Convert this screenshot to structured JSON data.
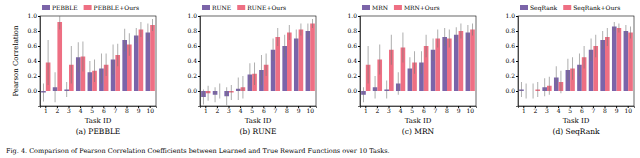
{
  "chart_data": [
    {
      "type": "bar",
      "title": "(a) PEBBLE",
      "x_label": "Task ID",
      "y_label": "Pearson Correlation",
      "categories": [
        "1",
        "2",
        "3",
        "4",
        "5",
        "6",
        "7",
        "8",
        "9",
        "10"
      ],
      "series": [
        {
          "name": "PEBBLE",
          "color": "#7b64a9",
          "values": [
            -0.02,
            0.05,
            0.02,
            0.45,
            0.25,
            0.3,
            0.42,
            0.68,
            0.74,
            0.78
          ],
          "errors": [
            0.12,
            0.2,
            0.1,
            0.2,
            0.15,
            0.2,
            0.2,
            0.15,
            0.1,
            0.12
          ]
        },
        {
          "name": "PEBBLE+Ours",
          "color": "#ee6f83",
          "values": [
            0.38,
            0.92,
            0.35,
            0.46,
            0.27,
            0.35,
            0.48,
            0.62,
            0.82,
            0.88
          ],
          "errors": [
            0.3,
            0.1,
            0.25,
            0.2,
            0.15,
            0.15,
            0.15,
            0.15,
            0.1,
            0.08
          ]
        }
      ],
      "ylim": [
        -0.2,
        1.0
      ],
      "yticks": [
        {
          "value": 0,
          "label": "0.0"
        },
        {
          "value": 0.2,
          "label": "0.2"
        },
        {
          "value": 0.4,
          "label": "0.4"
        },
        {
          "value": 0.6,
          "label": "0.6"
        },
        {
          "value": 0.8,
          "label": "0.8"
        },
        {
          "value": 1,
          "label": "1.0"
        }
      ],
      "legend": "upper left",
      "grid": false
    },
    {
      "type": "bar",
      "title": "(b) RUNE",
      "x_label": "Task ID",
      "categories": [
        "1",
        "2",
        "3",
        "4",
        "5",
        "6",
        "7",
        "8",
        "9",
        "10"
      ],
      "series": [
        {
          "name": "RUNE",
          "color": "#7b64a9",
          "values": [
            -0.08,
            -0.05,
            -0.07,
            0.03,
            0.22,
            0.28,
            0.55,
            0.6,
            0.7,
            0.8
          ],
          "errors": [
            0.1,
            0.1,
            0.12,
            0.15,
            0.15,
            0.2,
            0.15,
            0.15,
            0.12,
            0.1
          ]
        },
        {
          "name": "RUNE+Ours",
          "color": "#ee6f83",
          "values": [
            -0.03,
            0.0,
            -0.02,
            0.05,
            0.23,
            0.35,
            0.72,
            0.78,
            0.82,
            0.9
          ],
          "errors": [
            0.1,
            0.1,
            0.1,
            0.15,
            0.15,
            0.15,
            0.12,
            0.1,
            0.08,
            0.06
          ]
        }
      ],
      "ylim": [
        -0.2,
        1.0
      ],
      "yticks": [
        {
          "value": 0,
          "label": "0.0"
        },
        {
          "value": 0.2,
          "label": "0.2"
        },
        {
          "value": 0.4,
          "label": "0.4"
        },
        {
          "value": 0.6,
          "label": "0.6"
        },
        {
          "value": 0.8,
          "label": "0.8"
        },
        {
          "value": 1,
          "label": "1.0"
        }
      ],
      "legend": "upper left",
      "grid": false
    },
    {
      "type": "bar",
      "title": "(c) MRN",
      "x_label": "Task ID",
      "categories": [
        "1",
        "2",
        "3",
        "4",
        "5",
        "6",
        "7",
        "8",
        "9",
        "10"
      ],
      "series": [
        {
          "name": "MRN",
          "color": "#7b64a9",
          "values": [
            -0.05,
            0.05,
            0.02,
            0.1,
            0.3,
            0.38,
            0.55,
            0.72,
            0.75,
            0.78
          ],
          "errors": [
            0.1,
            0.15,
            0.12,
            0.15,
            0.15,
            0.15,
            0.15,
            0.12,
            0.1,
            0.1
          ]
        },
        {
          "name": "MRN+Ours",
          "color": "#ee6f83",
          "values": [
            0.35,
            0.42,
            0.55,
            0.58,
            0.38,
            0.6,
            0.7,
            0.7,
            0.8,
            0.82
          ],
          "errors": [
            0.25,
            0.2,
            0.2,
            0.2,
            0.15,
            0.15,
            0.12,
            0.12,
            0.1,
            0.08
          ]
        }
      ],
      "ylim": [
        -0.2,
        1.0
      ],
      "yticks": [
        {
          "value": 0,
          "label": "0.0"
        },
        {
          "value": 0.2,
          "label": "0.2"
        },
        {
          "value": 0.4,
          "label": "0.4"
        },
        {
          "value": 0.6,
          "label": "0.6"
        },
        {
          "value": 0.8,
          "label": "0.8"
        },
        {
          "value": 1,
          "label": "1.0"
        }
      ],
      "legend": "upper left",
      "grid": false
    },
    {
      "type": "bar",
      "title": "(d) SeqRank",
      "x_label": "Task ID",
      "categories": [
        "1",
        "2",
        "3",
        "4",
        "5",
        "6",
        "7",
        "8",
        "9",
        "10"
      ],
      "series": [
        {
          "name": "SeqRank",
          "color": "#7b64a9",
          "values": [
            0.02,
            0.0,
            0.05,
            0.18,
            0.28,
            0.35,
            0.55,
            0.68,
            0.86,
            0.8
          ],
          "errors": [
            0.1,
            0.1,
            0.12,
            0.15,
            0.15,
            0.15,
            0.15,
            0.12,
            0.06,
            0.08
          ]
        },
        {
          "name": "SeqRank+Ours",
          "color": "#ee6f83",
          "values": [
            0.0,
            0.02,
            0.07,
            0.12,
            0.3,
            0.45,
            0.6,
            0.72,
            0.84,
            0.78
          ],
          "errors": [
            0.1,
            0.1,
            0.12,
            0.15,
            0.15,
            0.15,
            0.15,
            0.12,
            0.06,
            0.08
          ]
        }
      ],
      "ylim": [
        -0.2,
        1.0
      ],
      "yticks": [
        {
          "value": 0,
          "label": "0.0"
        },
        {
          "value": 0.2,
          "label": "0.2"
        },
        {
          "value": 0.4,
          "label": "0.4"
        },
        {
          "value": 0.6,
          "label": "0.6"
        },
        {
          "value": 0.8,
          "label": "0.8"
        },
        {
          "value": 1,
          "label": "1.0"
        }
      ],
      "legend": "upper left",
      "grid": false
    }
  ],
  "caption": "Fig. 4. Comparison of Pearson Correlation Coefficients between Learned and True Reward Functions over 10 Tasks."
}
